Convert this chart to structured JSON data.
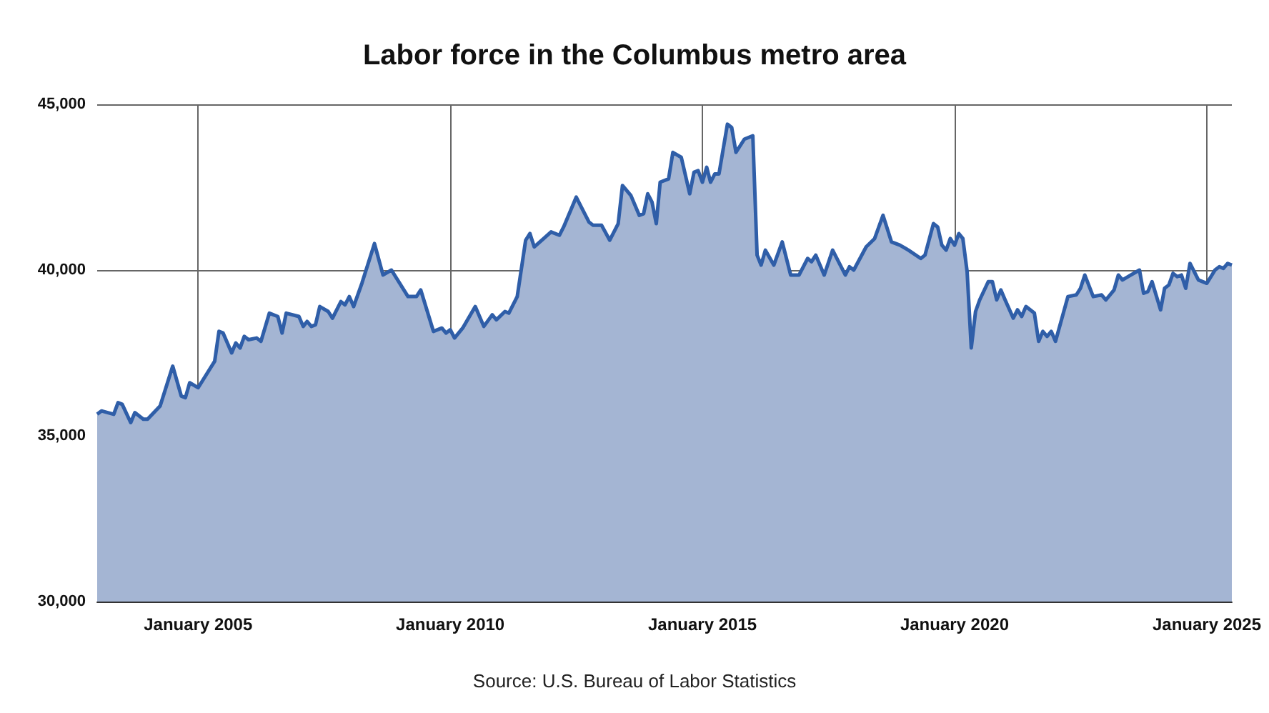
{
  "chart_data": {
    "type": "area",
    "title": "Labor force in the Columbus metro area",
    "annotations": [
      "Source: U.S. Bureau of Labor Statistics"
    ],
    "xlim": [
      "2003-01",
      "2025-07"
    ],
    "xticks": [
      {
        "value": "2005-01",
        "label": "January 2005"
      },
      {
        "value": "2010-01",
        "label": "January 2010"
      },
      {
        "value": "2015-01",
        "label": "January 2015"
      },
      {
        "value": "2020-01",
        "label": "January 2020"
      },
      {
        "value": "2025-01",
        "label": "January 2025"
      }
    ],
    "ylim": [
      30000,
      45000
    ],
    "yticks": [
      {
        "value": 30000,
        "label": "30,000"
      },
      {
        "value": 35000,
        "label": "35,000"
      },
      {
        "value": 40000,
        "label": "40,000"
      },
      {
        "value": 45000,
        "label": "45,000"
      }
    ],
    "grid": true,
    "marker": "none",
    "line_style": "solid",
    "series": [
      {
        "color": "#2f5ea8",
        "x": [
          "2003-01",
          "2003-02",
          "2003-05",
          "2003-06",
          "2003-07",
          "2003-09",
          "2003-10",
          "2003-12",
          "2004-01",
          "2004-04",
          "2004-07",
          "2004-09",
          "2004-10",
          "2004-11",
          "2005-01",
          "2005-05",
          "2005-06",
          "2005-07",
          "2005-09",
          "2005-10",
          "2005-11",
          "2005-12",
          "2006-01",
          "2006-03",
          "2006-04",
          "2006-06",
          "2006-08",
          "2006-09",
          "2006-10",
          "2007-01",
          "2007-02",
          "2007-03",
          "2007-04",
          "2007-05",
          "2007-06",
          "2007-08",
          "2007-09",
          "2007-11",
          "2007-12",
          "2008-01",
          "2008-02",
          "2008-04",
          "2008-07",
          "2008-09",
          "2008-11",
          "2009-03",
          "2009-05",
          "2009-06",
          "2009-09",
          "2009-11",
          "2009-12",
          "2010-01",
          "2010-02",
          "2010-04",
          "2010-07",
          "2010-09",
          "2010-11",
          "2010-12",
          "2011-02",
          "2011-03",
          "2011-05",
          "2011-07",
          "2011-08",
          "2011-09",
          "2012-01",
          "2012-03",
          "2012-04",
          "2012-07",
          "2012-10",
          "2012-11",
          "2013-01",
          "2013-03",
          "2013-05",
          "2013-06",
          "2013-08",
          "2013-10",
          "2013-11",
          "2013-12",
          "2014-01",
          "2014-02",
          "2014-03",
          "2014-05",
          "2014-06",
          "2014-08",
          "2014-10",
          "2014-11",
          "2014-12",
          "2015-01",
          "2015-02",
          "2015-03",
          "2015-04",
          "2015-05",
          "2015-07",
          "2015-08",
          "2015-09",
          "2015-11",
          "2016-01",
          "2016-02",
          "2016-03",
          "2016-04",
          "2016-06",
          "2016-08",
          "2016-10",
          "2016-12",
          "2017-02",
          "2017-03",
          "2017-04",
          "2017-06",
          "2017-08",
          "2017-11",
          "2017-12",
          "2018-01",
          "2018-04",
          "2018-06",
          "2018-08",
          "2018-10",
          "2018-12",
          "2019-02",
          "2019-05",
          "2019-06",
          "2019-08",
          "2019-09",
          "2019-10",
          "2019-11",
          "2019-12",
          "2020-01",
          "2020-02",
          "2020-03",
          "2020-04",
          "2020-05",
          "2020-06",
          "2020-07",
          "2020-09",
          "2020-10",
          "2020-11",
          "2020-12",
          "2021-01",
          "2021-03",
          "2021-04",
          "2021-05",
          "2021-06",
          "2021-08",
          "2021-09",
          "2021-10",
          "2021-11",
          "2021-12",
          "2022-01",
          "2022-04",
          "2022-06",
          "2022-07",
          "2022-08",
          "2022-10",
          "2022-12",
          "2023-01",
          "2023-03",
          "2023-04",
          "2023-05",
          "2023-07",
          "2023-09",
          "2023-10",
          "2023-11",
          "2023-12",
          "2024-02",
          "2024-03",
          "2024-04",
          "2024-05",
          "2024-06",
          "2024-07",
          "2024-08",
          "2024-09",
          "2024-11",
          "2025-01",
          "2025-03",
          "2025-04",
          "2025-05",
          "2025-06",
          "2025-07"
        ],
        "values": [
          35650,
          35750,
          35650,
          36000,
          35950,
          35400,
          35700,
          35500,
          35500,
          35900,
          37100,
          36200,
          36150,
          36600,
          36450,
          37250,
          38150,
          38100,
          37500,
          37800,
          37650,
          38000,
          37900,
          37950,
          37850,
          38700,
          38600,
          38100,
          38700,
          38600,
          38300,
          38450,
          38300,
          38350,
          38900,
          38750,
          38550,
          39050,
          38950,
          39200,
          38900,
          39600,
          40800,
          39850,
          40000,
          39200,
          39200,
          39400,
          38150,
          38250,
          38100,
          38200,
          37950,
          38250,
          38900,
          38300,
          38650,
          38500,
          38750,
          38700,
          39200,
          40900,
          41100,
          40700,
          41150,
          41050,
          41300,
          42200,
          41450,
          41350,
          41350,
          40900,
          41400,
          42550,
          42250,
          41650,
          41700,
          42300,
          42050,
          41400,
          42650,
          42750,
          43550,
          43400,
          42300,
          42950,
          43000,
          42650,
          43100,
          42650,
          42900,
          42900,
          44400,
          44300,
          43550,
          43950,
          44050,
          40450,
          40150,
          40600,
          40150,
          40850,
          39850,
          39850,
          40350,
          40250,
          40450,
          39850,
          40600,
          39850,
          40100,
          40000,
          40700,
          40950,
          41650,
          40850,
          40750,
          40600,
          40350,
          40450,
          41400,
          41300,
          40750,
          40600,
          40950,
          40750,
          41100,
          40950,
          39950,
          37650,
          38750,
          39100,
          39650,
          39650,
          39100,
          39400,
          39100,
          38550,
          38800,
          38600,
          38900,
          38700,
          37850,
          38150,
          38000,
          38150,
          37850,
          39200,
          39250,
          39450,
          39850,
          39200,
          39250,
          39100,
          39400,
          39850,
          39700,
          39850,
          40000,
          39300,
          39350,
          39650,
          38800,
          39450,
          39550,
          39900,
          39800,
          39850,
          39450,
          40200,
          39700,
          39600,
          40000,
          40100,
          40050,
          40200,
          40150
        ]
      }
    ]
  }
}
